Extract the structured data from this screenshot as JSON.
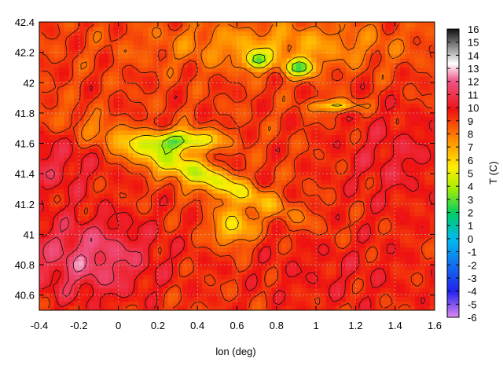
{
  "chart_data": {
    "type": "heatmap",
    "title": "",
    "xlabel": "lon (deg)",
    "ylabel": "",
    "colorbar_label": "T (C)",
    "xlim": [
      -0.4,
      1.6
    ],
    "ylim": [
      40.5,
      42.4
    ],
    "x_ticks": [
      "-0.4",
      "-0.2",
      "0",
      "0.2",
      "0.4",
      "0.6",
      "0.8",
      "1",
      "1.2",
      "1.4",
      "1.6"
    ],
    "y_ticks": [
      "40.6",
      "40.8",
      "41",
      "41.2",
      "41.4",
      "41.6",
      "41.8",
      "42",
      "42.2",
      "42.4"
    ],
    "colorbar_ticks": [
      "16",
      "15",
      "14",
      "13",
      "12",
      "11",
      "10",
      "9",
      "8",
      "7",
      "6",
      "5",
      "4",
      "3",
      "2",
      "1",
      "0",
      "-1",
      "-2",
      "-3",
      "-4",
      "-5",
      "-6"
    ],
    "crange": [
      -6,
      16
    ],
    "grid": true,
    "contours": true,
    "colors": {
      "min": "#dd88ee",
      "cold": "#2222ee",
      "zero": "#00bbee",
      "cool": "#00cc66",
      "warm": "#ffee00",
      "mild": "#ff8800",
      "hot": "#ee1111",
      "max": "#111111"
    }
  }
}
